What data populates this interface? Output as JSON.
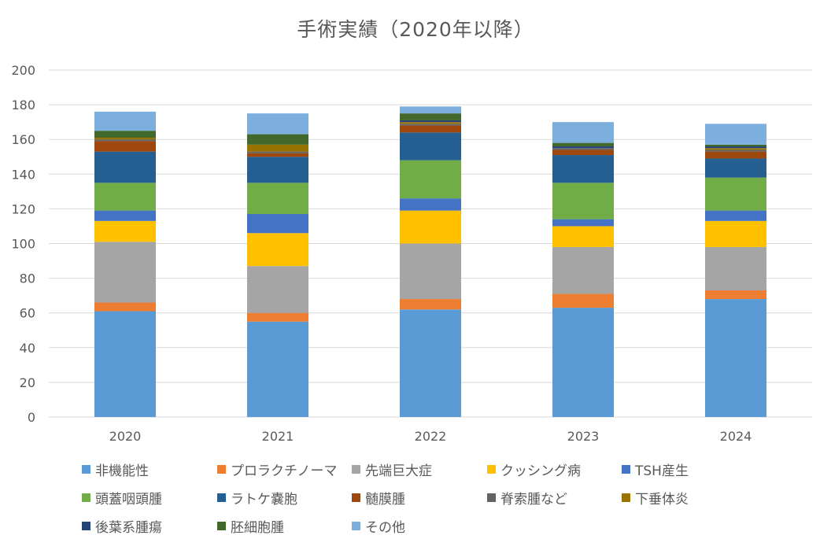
{
  "chart_data": {
    "type": "bar",
    "stacked": true,
    "title": "手術実績（2020年以降）",
    "xlabel": "",
    "ylabel": "",
    "ylim": [
      0,
      200
    ],
    "yticks": [
      "0",
      "20",
      "40",
      "60",
      "80",
      "100",
      "120",
      "140",
      "160",
      "180",
      "200"
    ],
    "grid": true,
    "legend_position": "bottom",
    "categories": [
      "2020",
      "2021",
      "2022",
      "2023",
      "2024"
    ],
    "series": [
      {
        "name": "非機能性",
        "color": "#5B9BD5",
        "values": [
          61,
          55,
          62,
          63,
          68
        ]
      },
      {
        "name": "プロラクチノーマ",
        "color": "#ED7D31",
        "values": [
          5,
          5,
          6,
          8,
          5
        ]
      },
      {
        "name": "先端巨大症",
        "color": "#A5A5A5",
        "values": [
          35,
          27,
          32,
          27,
          25
        ]
      },
      {
        "name": "クッシング病",
        "color": "#FFC000",
        "values": [
          12,
          19,
          19,
          12,
          15
        ]
      },
      {
        "name": "TSH産生",
        "color": "#4472C4",
        "values": [
          6,
          11,
          7,
          4,
          6
        ]
      },
      {
        "name": "頭蓋咽頭腫",
        "color": "#70AD47",
        "values": [
          16,
          18,
          22,
          21,
          19
        ]
      },
      {
        "name": "ラトケ嚢胞",
        "color": "#255E91",
        "values": [
          18,
          15,
          16,
          16,
          11
        ]
      },
      {
        "name": "髄膜腫",
        "color": "#9E480E",
        "values": [
          6,
          2,
          4,
          3,
          4
        ]
      },
      {
        "name": "脊索腫など",
        "color": "#636363",
        "values": [
          1,
          1,
          1,
          1,
          1
        ]
      },
      {
        "name": "下垂体炎",
        "color": "#997300",
        "values": [
          1,
          4,
          1,
          0,
          1
        ]
      },
      {
        "name": "後葉系腫瘍",
        "color": "#264478",
        "values": [
          0,
          0,
          1,
          1,
          1
        ]
      },
      {
        "name": "胚細胞腫",
        "color": "#43682B",
        "values": [
          4,
          6,
          4,
          2,
          1
        ]
      },
      {
        "name": "その他",
        "color": "#7CAFDD",
        "values": [
          11,
          12,
          4,
          12,
          12
        ]
      }
    ]
  }
}
